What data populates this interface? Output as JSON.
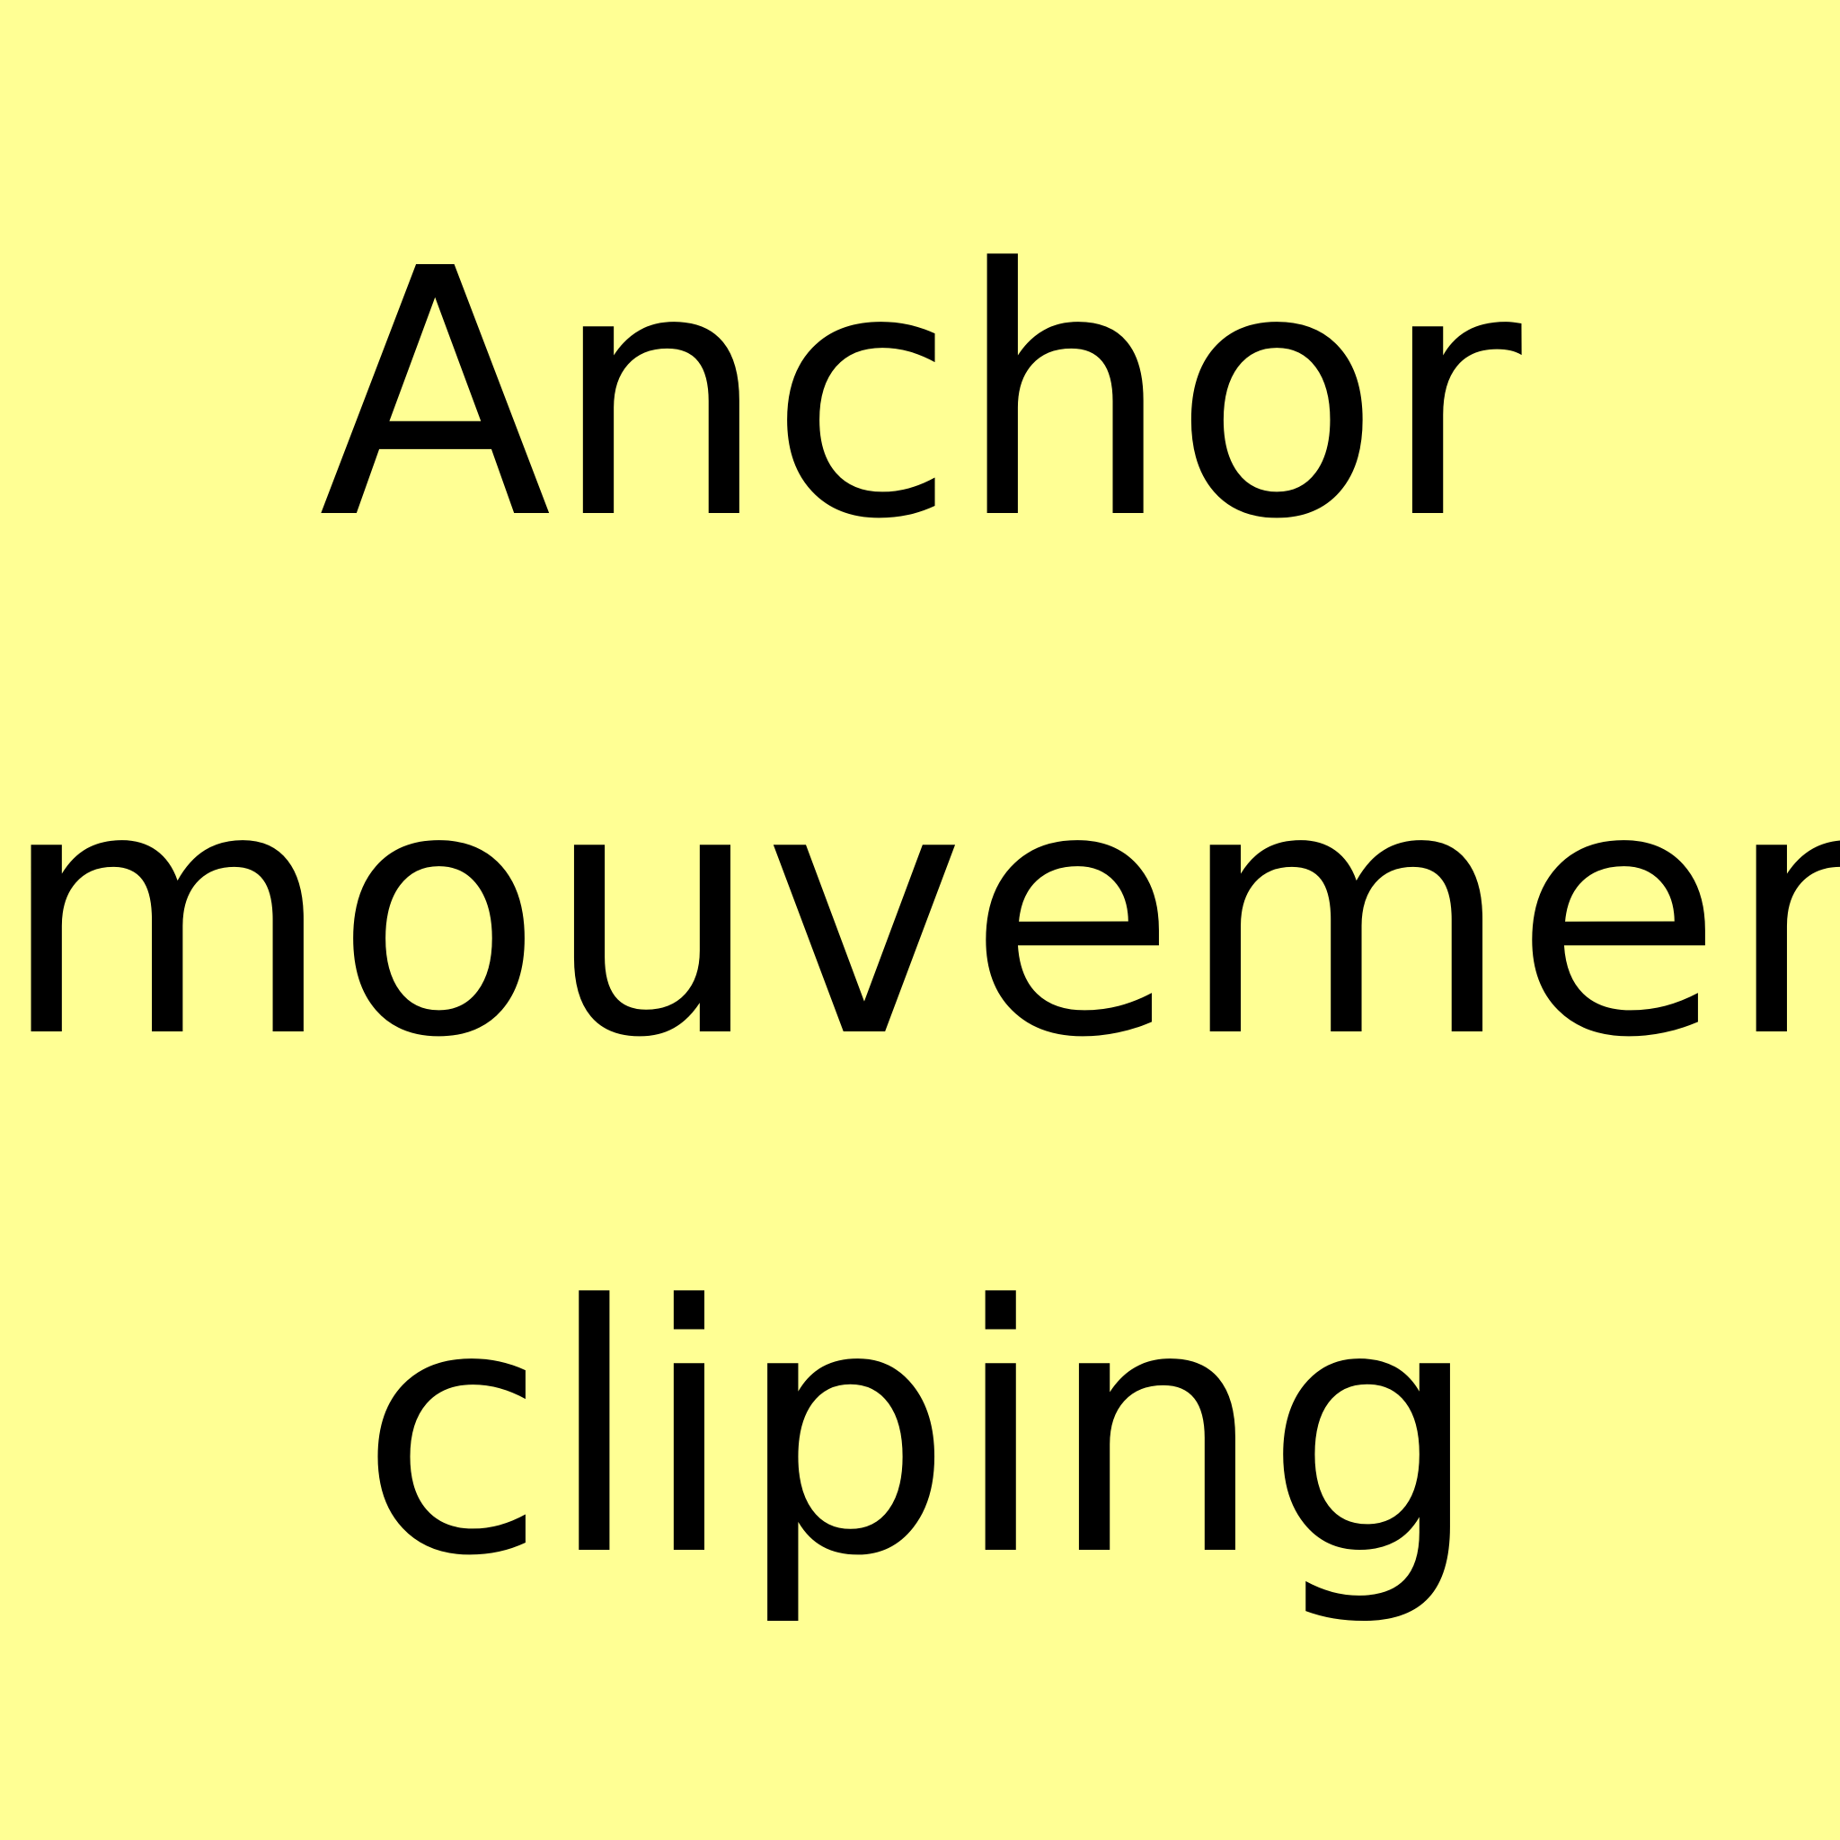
{
  "background_color": "#FFFF94",
  "text_color": "#000000",
  "lines": [
    "Anchor",
    "mouvement",
    "cliping"
  ]
}
